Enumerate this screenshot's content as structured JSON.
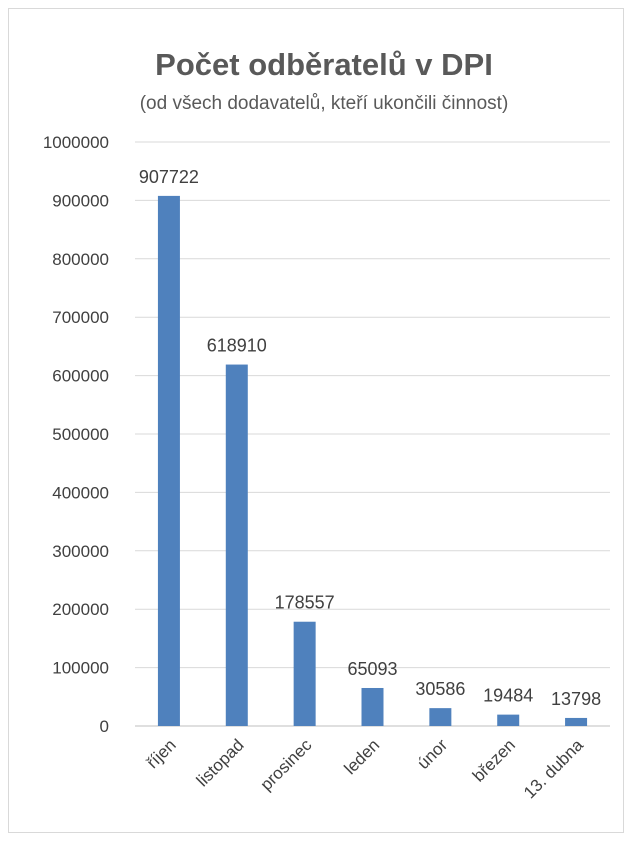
{
  "chart_data": {
    "type": "bar",
    "title": "Počet odběratelů v DPI",
    "subtitle": "(od všech dodavatelů, kteří ukončili činnost)",
    "categories": [
      "říjen",
      "listopad",
      "prosinec",
      "leden",
      "únor",
      "březen",
      "13. dubna"
    ],
    "values": [
      907722,
      618910,
      178557,
      65093,
      30586,
      19484,
      13798
    ],
    "data_labels": [
      "907722",
      "618910",
      "178557",
      "65093",
      "30586",
      "19484",
      "13798"
    ],
    "ylim": [
      0,
      1000000
    ],
    "yticks": [
      "0",
      "100000",
      "200000",
      "300000",
      "400000",
      "500000",
      "600000",
      "700000",
      "800000",
      "900000",
      "1000000"
    ],
    "xlabel": "",
    "ylabel": "",
    "grid": true,
    "legend": "none",
    "bar_color": "#4f81bd",
    "grid_color": "#d9d9d9"
  }
}
